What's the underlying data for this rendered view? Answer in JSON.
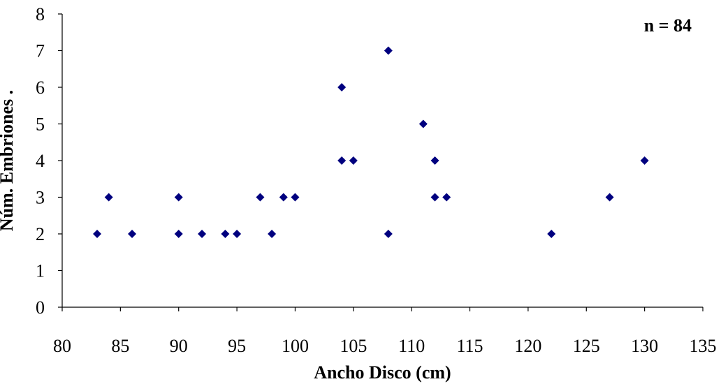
{
  "chart_data": {
    "type": "scatter",
    "title": "",
    "xlabel": "Ancho Disco (cm)",
    "ylabel": "Núm. Embriones .",
    "xlim": [
      80,
      135
    ],
    "ylim": [
      0,
      8
    ],
    "x_ticks": [
      80,
      85,
      90,
      95,
      100,
      105,
      110,
      115,
      120,
      125,
      130,
      135
    ],
    "y_ticks": [
      0,
      1,
      2,
      3,
      4,
      5,
      6,
      7,
      8
    ],
    "grid": false,
    "legend": "none",
    "marker": "diamond",
    "marker_color": "#00007F",
    "annotation": "n = 84",
    "annotation_position": "top-right",
    "series": [
      {
        "points": [
          {
            "x": 83,
            "y": 2
          },
          {
            "x": 84,
            "y": 3
          },
          {
            "x": 86,
            "y": 2
          },
          {
            "x": 90,
            "y": 3
          },
          {
            "x": 90,
            "y": 2
          },
          {
            "x": 92,
            "y": 2
          },
          {
            "x": 94,
            "y": 2
          },
          {
            "x": 95,
            "y": 2
          },
          {
            "x": 97,
            "y": 3
          },
          {
            "x": 98,
            "y": 2
          },
          {
            "x": 99,
            "y": 3
          },
          {
            "x": 100,
            "y": 3
          },
          {
            "x": 104,
            "y": 6
          },
          {
            "x": 104,
            "y": 4
          },
          {
            "x": 105,
            "y": 4
          },
          {
            "x": 108,
            "y": 7
          },
          {
            "x": 108,
            "y": 2
          },
          {
            "x": 111,
            "y": 5
          },
          {
            "x": 112,
            "y": 4
          },
          {
            "x": 112,
            "y": 3
          },
          {
            "x": 113,
            "y": 3
          },
          {
            "x": 122,
            "y": 2
          },
          {
            "x": 127,
            "y": 3
          },
          {
            "x": 130,
            "y": 4
          }
        ]
      }
    ]
  }
}
